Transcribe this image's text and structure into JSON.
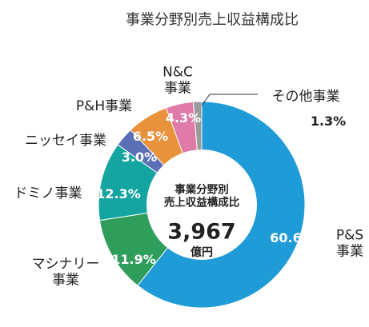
{
  "chart_data": {
    "type": "donut",
    "title": "事業分野別売上収益構成比",
    "center_title": "事業分野別\n売上収益構成比",
    "center_value": "3,967",
    "center_unit": "億円",
    "categories": [
      "P&S\n事業",
      "マシナリー\n事業",
      "ドミノ事業",
      "ニッセイ事業",
      "P&H事業",
      "N&C\n事業",
      "その他事業"
    ],
    "values": [
      60.6,
      11.9,
      12.3,
      3.0,
      6.5,
      4.3,
      1.3
    ],
    "value_labels": [
      "60.6%",
      "11.9%",
      "12.3%",
      "3.0%",
      "6.5%",
      "4.3%",
      "1.3%"
    ],
    "colors": [
      "#1f9bd7",
      "#2f9e5b",
      "#15a5a1",
      "#5a6fb6",
      "#e8923b",
      "#e07aa9",
      "#9a9a9a"
    ]
  }
}
